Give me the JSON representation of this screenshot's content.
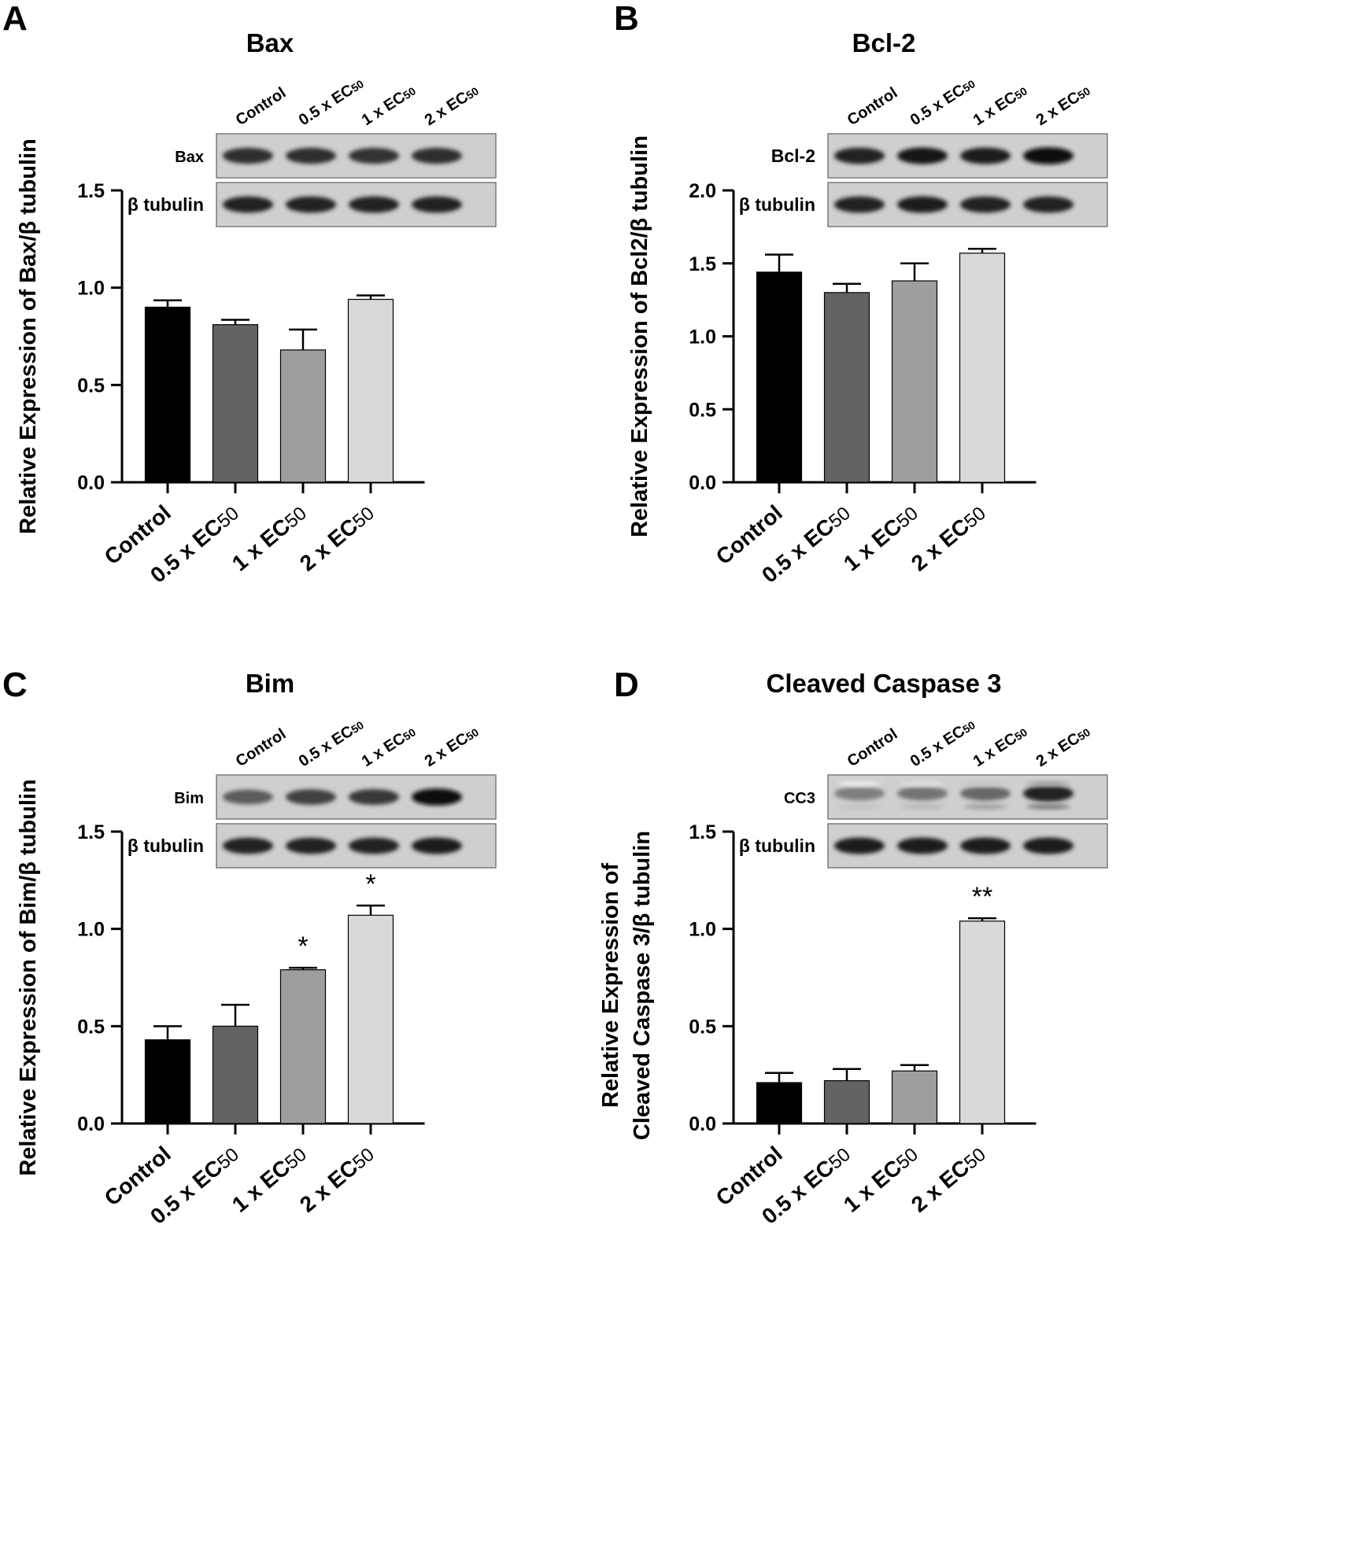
{
  "chart_data": [
    {
      "panel_letter": "A",
      "type": "bar",
      "title": "Bax",
      "ylabel": "Relative Expression of Bax/β tubulin",
      "xlabel": "",
      "categories": [
        {
          "main": "Control",
          "sub": ""
        },
        {
          "main": "0.5 x EC",
          "sub": "50"
        },
        {
          "main": "1 x EC",
          "sub": "50"
        },
        {
          "main": "2 x EC",
          "sub": "50"
        }
      ],
      "values": [
        0.9,
        0.81,
        0.68,
        0.94
      ],
      "errors": [
        0.035,
        0.025,
        0.105,
        0.02
      ],
      "significance": [
        "",
        "",
        "",
        ""
      ],
      "ylim": [
        0,
        1.5
      ],
      "yticks": [
        "0.0",
        "0.5",
        "1.0",
        "1.5"
      ],
      "ytick_values": [
        0,
        0.5,
        1.0,
        1.5
      ],
      "bar_colors": [
        "#000000",
        "#636363",
        "#9e9e9e",
        "#d9d9d9"
      ],
      "blot": {
        "lane_labels": [
          {
            "main": "Control",
            "sub": ""
          },
          {
            "main": "0.5 x EC",
            "sub": "50"
          },
          {
            "main": "1 x EC",
            "sub": "50"
          },
          {
            "main": "2 x EC",
            "sub": "50"
          }
        ],
        "rows": [
          {
            "label": "Bax",
            "intensity": [
              0.8,
              0.8,
              0.78,
              0.8
            ],
            "extra": []
          },
          {
            "label": "β tubulin",
            "intensity": [
              0.85,
              0.85,
              0.85,
              0.85
            ],
            "extra": []
          }
        ]
      }
    },
    {
      "panel_letter": "B",
      "type": "bar",
      "title": "Bcl-2",
      "ylabel": "Relative Expression of Bcl2/β tubulin",
      "xlabel": "",
      "categories": [
        {
          "main": "Control",
          "sub": ""
        },
        {
          "main": "0.5 x EC",
          "sub": "50"
        },
        {
          "main": "1 x EC",
          "sub": "50"
        },
        {
          "main": "2 x EC",
          "sub": "50"
        }
      ],
      "values": [
        1.44,
        1.3,
        1.38,
        1.57
      ],
      "errors": [
        0.12,
        0.06,
        0.12,
        0.03
      ],
      "significance": [
        "",
        "",
        "",
        ""
      ],
      "ylim": [
        0,
        2.0
      ],
      "yticks": [
        "0.0",
        "0.5",
        "1.0",
        "1.5",
        "2.0"
      ],
      "ytick_values": [
        0,
        0.5,
        1.0,
        1.5,
        2.0
      ],
      "bar_colors": [
        "#000000",
        "#636363",
        "#9e9e9e",
        "#d9d9d9"
      ],
      "blot": {
        "lane_labels": [
          {
            "main": "Control",
            "sub": ""
          },
          {
            "main": "0.5 x EC",
            "sub": "50"
          },
          {
            "main": "1 x EC",
            "sub": "50"
          },
          {
            "main": "2 x EC",
            "sub": "50"
          }
        ],
        "rows": [
          {
            "label": "Bcl-2",
            "intensity": [
              0.85,
              0.9,
              0.88,
              0.95
            ],
            "extra": []
          },
          {
            "label": "β tubulin",
            "intensity": [
              0.85,
              0.88,
              0.85,
              0.85
            ],
            "extra": []
          }
        ]
      }
    },
    {
      "panel_letter": "C",
      "type": "bar",
      "title": "Bim",
      "ylabel": "Relative Expression of Bim/β tubulin",
      "xlabel": "",
      "categories": [
        {
          "main": "Control",
          "sub": ""
        },
        {
          "main": "0.5 x EC",
          "sub": "50"
        },
        {
          "main": "1 x EC",
          "sub": "50"
        },
        {
          "main": "2 x EC",
          "sub": "50"
        }
      ],
      "values": [
        0.43,
        0.5,
        0.79,
        1.07
      ],
      "errors": [
        0.07,
        0.11,
        0.01,
        0.05
      ],
      "significance": [
        "",
        "",
        "*",
        "*"
      ],
      "ylim": [
        0,
        1.5
      ],
      "yticks": [
        "0.0",
        "0.5",
        "1.0",
        "1.5"
      ],
      "ytick_values": [
        0,
        0.5,
        1.0,
        1.5
      ],
      "bar_colors": [
        "#000000",
        "#636363",
        "#9e9e9e",
        "#d9d9d9"
      ],
      "blot": {
        "lane_labels": [
          {
            "main": "Control",
            "sub": ""
          },
          {
            "main": "0.5 x EC",
            "sub": "50"
          },
          {
            "main": "1 x EC",
            "sub": "50"
          },
          {
            "main": "2 x EC",
            "sub": "50"
          }
        ],
        "rows": [
          {
            "label": "Bim",
            "intensity": [
              0.6,
              0.72,
              0.75,
              0.95
            ],
            "extra": []
          },
          {
            "label": "β tubulin",
            "intensity": [
              0.85,
              0.85,
              0.85,
              0.88
            ],
            "extra": []
          }
        ]
      }
    },
    {
      "panel_letter": "D",
      "type": "bar",
      "title": "Cleaved Caspase 3",
      "ylabel": "Relative Expression of",
      "ylabel2": "Cleaved Caspase 3/β tubulin",
      "xlabel": "",
      "categories": [
        {
          "main": "Control",
          "sub": ""
        },
        {
          "main": "0.5 x EC",
          "sub": "50"
        },
        {
          "main": "1 x EC",
          "sub": "50"
        },
        {
          "main": "2 x EC",
          "sub": "50"
        }
      ],
      "values": [
        0.21,
        0.22,
        0.27,
        1.04
      ],
      "errors": [
        0.05,
        0.06,
        0.03,
        0.015
      ],
      "significance": [
        "",
        "",
        "",
        "**"
      ],
      "ylim": [
        0,
        1.5
      ],
      "yticks": [
        "0.0",
        "0.5",
        "1.0",
        "1.5"
      ],
      "ytick_values": [
        0,
        0.5,
        1.0,
        1.5
      ],
      "bar_colors": [
        "#000000",
        "#636363",
        "#9e9e9e",
        "#d9d9d9"
      ],
      "blot": {
        "lane_labels": [
          {
            "main": "Control",
            "sub": ""
          },
          {
            "main": "0.5 x EC",
            "sub": "50"
          },
          {
            "main": "1 x EC",
            "sub": "50"
          },
          {
            "main": "2 x EC",
            "sub": "50"
          }
        ],
        "rows": [
          {
            "label": "CC3",
            "intensity": [
              0.45,
              0.5,
              0.55,
              0.85
            ],
            "extra": [
              0.15,
              0.2,
              0.3,
              0.45
            ]
          },
          {
            "label": "β tubulin",
            "intensity": [
              0.88,
              0.88,
              0.88,
              0.88
            ],
            "extra": []
          }
        ]
      }
    }
  ]
}
